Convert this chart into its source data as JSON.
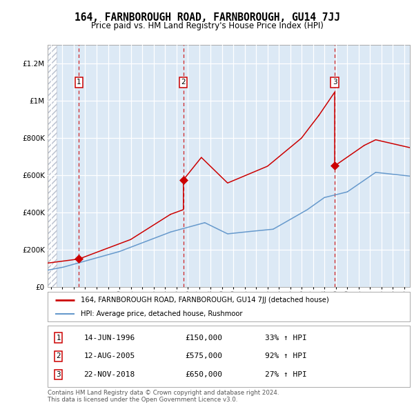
{
  "title": "164, FARNBOROUGH ROAD, FARNBOROUGH, GU14 7JJ",
  "subtitle": "Price paid vs. HM Land Registry's House Price Index (HPI)",
  "legend_house": "164, FARNBOROUGH ROAD, FARNBOROUGH, GU14 7JJ (detached house)",
  "legend_hpi": "HPI: Average price, detached house, Rushmoor",
  "copyright": "Contains HM Land Registry data © Crown copyright and database right 2024.\nThis data is licensed under the Open Government Licence v3.0.",
  "transactions": [
    {
      "num": 1,
      "date": "14-JUN-1996",
      "price": 150000,
      "pct": "33%",
      "year": 1996.45
    },
    {
      "num": 2,
      "date": "12-AUG-2005",
      "price": 575000,
      "pct": "92%",
      "year": 2005.62
    },
    {
      "num": 3,
      "date": "22-NOV-2018",
      "price": 650000,
      "pct": "27%",
      "year": 2018.9
    }
  ],
  "house_color": "#cc0000",
  "hpi_color": "#6699cc",
  "bg_color": "#dce9f5",
  "grid_color": "#ffffff",
  "dashed_color": "#cc0000",
  "ylim": [
    0,
    1300000
  ],
  "xlim_start": 1993.7,
  "xlim_end": 2025.5,
  "hatch_end": 1994.5
}
